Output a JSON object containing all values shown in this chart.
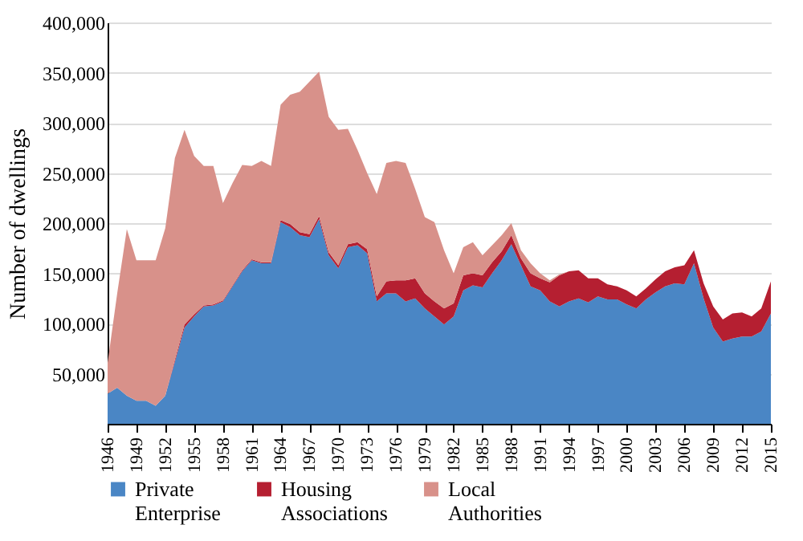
{
  "chart_data": {
    "type": "area",
    "stacked": true,
    "ylabel": "Number of dwellings",
    "grid": "y",
    "legend": "bottom",
    "x": [
      1946,
      1947,
      1948,
      1949,
      1950,
      1951,
      1952,
      1953,
      1954,
      1955,
      1956,
      1957,
      1958,
      1959,
      1960,
      1961,
      1962,
      1963,
      1964,
      1965,
      1966,
      1967,
      1968,
      1969,
      1970,
      1971,
      1972,
      1973,
      1974,
      1975,
      1976,
      1977,
      1978,
      1979,
      1980,
      1981,
      1982,
      1983,
      1984,
      1985,
      1986,
      1987,
      1988,
      1989,
      1990,
      1991,
      1992,
      1993,
      1994,
      1995,
      1996,
      1997,
      1998,
      1999,
      2000,
      2001,
      2002,
      2003,
      2004,
      2005,
      2006,
      2007,
      2008,
      2009,
      2010,
      2011,
      2012,
      2013,
      2014,
      2015
    ],
    "xlim": [
      1946,
      2015
    ],
    "xticks": [
      1946,
      1949,
      1952,
      1955,
      1958,
      1961,
      1964,
      1967,
      1970,
      1973,
      1976,
      1979,
      1982,
      1985,
      1988,
      1991,
      1994,
      1997,
      2000,
      2003,
      2006,
      2009,
      2012,
      2015
    ],
    "ylim": [
      0,
      400000
    ],
    "yticks": [
      {
        "value": 50000,
        "label": "50,000"
      },
      {
        "value": 100000,
        "label": "100,000"
      },
      {
        "value": 150000,
        "label": "150,000"
      },
      {
        "value": 200000,
        "label": "200,000"
      },
      {
        "value": 250000,
        "label": "250,000"
      },
      {
        "value": 300000,
        "label": "300,000"
      },
      {
        "value": 350000,
        "label": "350,000"
      },
      {
        "value": 400000,
        "label": "400,000"
      }
    ],
    "series": [
      {
        "name": "Private Enterprise",
        "color": "#4a86c5",
        "values": [
          30000,
          36000,
          28000,
          23000,
          23000,
          18000,
          28000,
          62000,
          96000,
          107000,
          117000,
          118000,
          122000,
          137000,
          152000,
          163000,
          160000,
          160000,
          201000,
          196000,
          188000,
          186000,
          204000,
          168000,
          155000,
          176000,
          178000,
          170000,
          122000,
          130000,
          130000,
          122000,
          125000,
          115000,
          107000,
          99000,
          107000,
          133000,
          138000,
          136000,
          150000,
          163000,
          179000,
          158000,
          137000,
          133000,
          122000,
          117000,
          122000,
          125000,
          121000,
          127000,
          124000,
          124000,
          119000,
          115000,
          124000,
          131000,
          137000,
          140000,
          139000,
          160000,
          125000,
          96000,
          82000,
          85000,
          87000,
          87000,
          92000,
          110000
        ]
      },
      {
        "name": "Housing Associations",
        "color": "#b51f31",
        "values": [
          0,
          0,
          0,
          0,
          0,
          0,
          0,
          2000,
          3000,
          2000,
          1000,
          1000,
          1000,
          1000,
          1000,
          1000,
          1000,
          1000,
          2000,
          3000,
          3000,
          3000,
          3000,
          3000,
          3000,
          3000,
          3000,
          4000,
          5000,
          12000,
          13000,
          21000,
          20000,
          15000,
          15000,
          16000,
          13000,
          15000,
          12000,
          12000,
          11000,
          9000,
          9000,
          7000,
          13000,
          12000,
          19000,
          31000,
          30000,
          28000,
          24000,
          18000,
          15000,
          13000,
          14000,
          12000,
          11000,
          13000,
          15000,
          16000,
          19000,
          13000,
          15000,
          21000,
          22000,
          25000,
          24000,
          20000,
          23000,
          32000
        ]
      },
      {
        "name": "Local Authorities",
        "color": "#d8918a",
        "values": [
          31000,
          94000,
          166000,
          140000,
          140000,
          145000,
          167000,
          201000,
          194000,
          158000,
          139000,
          138000,
          97000,
          102000,
          105000,
          93000,
          101000,
          96000,
          115000,
          129000,
          140000,
          152000,
          144000,
          135000,
          135000,
          115000,
          92000,
          76000,
          102000,
          118000,
          119000,
          117000,
          89000,
          76000,
          79000,
          58000,
          30000,
          28000,
          31000,
          20000,
          17000,
          16000,
          12000,
          8000,
          10000,
          5000,
          2000,
          1000,
          0,
          0,
          0,
          0,
          0,
          0,
          0,
          0,
          0,
          0,
          0,
          0,
          0,
          0,
          0,
          0,
          0,
          0,
          0,
          0,
          0,
          0
        ]
      }
    ]
  }
}
